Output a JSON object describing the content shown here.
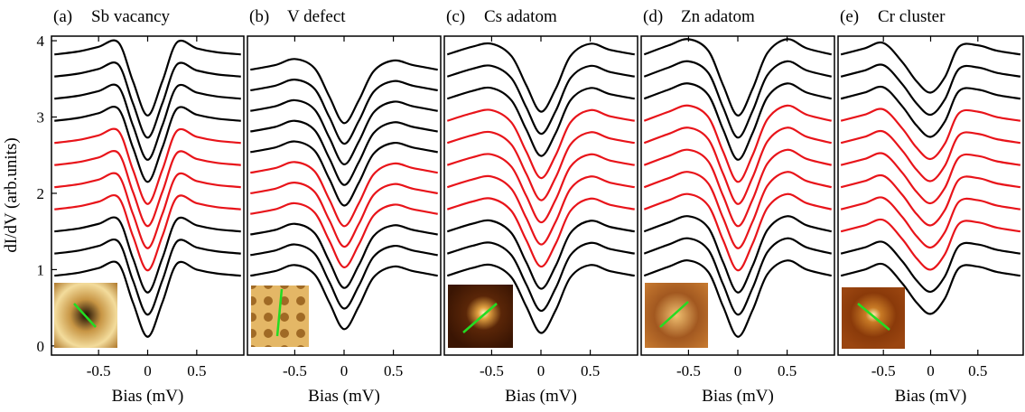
{
  "chart_data": [
    {
      "type": "line",
      "panel_label": "(a)",
      "title": "Sb vacancy",
      "x_label": "Bias (mV)",
      "y_label": "dI/dV (arb.units)",
      "xlim": [
        -0.98,
        0.98
      ],
      "xticks": [
        -0.5,
        0,
        0.5
      ],
      "ylim": [
        -0.12,
        4.06
      ],
      "yticks": [
        0,
        1,
        2,
        3,
        4
      ],
      "x": [
        -0.95,
        -0.7,
        -0.5,
        -0.3,
        -0.15,
        0,
        0.15,
        0.3,
        0.5,
        0.7,
        0.95
      ],
      "series": [
        {
          "color": "#000000",
          "values": [
            3.82,
            3.86,
            3.92,
            3.98,
            3.47,
            3.02,
            3.47,
            3.98,
            3.9,
            3.85,
            3.82
          ]
        },
        {
          "color": "#000000",
          "values": [
            3.53,
            3.57,
            3.63,
            3.69,
            3.18,
            2.73,
            3.18,
            3.69,
            3.61,
            3.56,
            3.53
          ]
        },
        {
          "color": "#000000",
          "values": [
            3.24,
            3.28,
            3.34,
            3.4,
            2.89,
            2.44,
            2.89,
            3.4,
            3.32,
            3.27,
            3.24
          ]
        },
        {
          "color": "#000000",
          "values": [
            2.95,
            2.99,
            3.05,
            3.11,
            2.6,
            2.15,
            2.6,
            3.11,
            3.03,
            2.98,
            2.95
          ]
        },
        {
          "color": "#e8141a",
          "values": [
            2.66,
            2.7,
            2.76,
            2.82,
            2.31,
            1.86,
            2.31,
            2.82,
            2.74,
            2.69,
            2.66
          ]
        },
        {
          "color": "#e8141a",
          "values": [
            2.37,
            2.41,
            2.47,
            2.53,
            2.02,
            1.57,
            2.02,
            2.53,
            2.45,
            2.4,
            2.37
          ]
        },
        {
          "color": "#e8141a",
          "values": [
            2.08,
            2.12,
            2.18,
            2.24,
            1.73,
            1.28,
            1.73,
            2.24,
            2.16,
            2.11,
            2.08
          ]
        },
        {
          "color": "#e8141a",
          "values": [
            1.79,
            1.83,
            1.89,
            1.95,
            1.44,
            0.99,
            1.44,
            1.95,
            1.87,
            1.82,
            1.79
          ]
        },
        {
          "color": "#000000",
          "values": [
            1.5,
            1.54,
            1.6,
            1.66,
            1.15,
            0.7,
            1.15,
            1.66,
            1.58,
            1.53,
            1.5
          ]
        },
        {
          "color": "#000000",
          "values": [
            1.21,
            1.25,
            1.31,
            1.37,
            0.86,
            0.41,
            0.86,
            1.37,
            1.29,
            1.24,
            1.21
          ]
        },
        {
          "color": "#000000",
          "values": [
            0.92,
            0.96,
            1.02,
            1.08,
            0.57,
            0.12,
            0.57,
            1.08,
            1.0,
            0.95,
            0.92
          ]
        }
      ]
    },
    {
      "type": "line",
      "panel_label": "(b)",
      "title": "V defect",
      "x_label": "Bias (mV)",
      "xlim": [
        -0.98,
        0.98
      ],
      "xticks": [
        -0.5,
        0,
        0.5
      ],
      "ylim": [
        -0.12,
        4.06
      ],
      "x": [
        -0.95,
        -0.7,
        -0.5,
        -0.3,
        -0.15,
        0,
        0.15,
        0.3,
        0.5,
        0.7,
        0.95
      ],
      "series": [
        {
          "color": "#000000",
          "values": [
            3.62,
            3.68,
            3.76,
            3.64,
            3.27,
            2.92,
            3.22,
            3.6,
            3.74,
            3.68,
            3.62
          ]
        },
        {
          "color": "#000000",
          "values": [
            3.35,
            3.41,
            3.49,
            3.37,
            3.0,
            2.65,
            2.95,
            3.33,
            3.47,
            3.41,
            3.35
          ]
        },
        {
          "color": "#000000",
          "values": [
            3.08,
            3.14,
            3.22,
            3.1,
            2.73,
            2.38,
            2.68,
            3.06,
            3.2,
            3.14,
            3.08
          ]
        },
        {
          "color": "#000000",
          "values": [
            2.81,
            2.87,
            2.95,
            2.83,
            2.46,
            2.11,
            2.41,
            2.79,
            2.93,
            2.87,
            2.81
          ]
        },
        {
          "color": "#000000",
          "values": [
            2.54,
            2.6,
            2.68,
            2.56,
            2.19,
            1.84,
            2.14,
            2.52,
            2.66,
            2.6,
            2.54
          ]
        },
        {
          "color": "#e8141a",
          "values": [
            2.27,
            2.33,
            2.41,
            2.29,
            1.92,
            1.57,
            1.87,
            2.25,
            2.39,
            2.33,
            2.27
          ]
        },
        {
          "color": "#e8141a",
          "values": [
            2,
            2.06,
            2.14,
            2.02,
            1.65,
            1.3,
            1.6,
            1.98,
            2.12,
            2.06,
            2
          ]
        },
        {
          "color": "#e8141a",
          "values": [
            1.73,
            1.79,
            1.87,
            1.75,
            1.38,
            1.03,
            1.33,
            1.71,
            1.85,
            1.79,
            1.73
          ]
        },
        {
          "color": "#000000",
          "values": [
            1.46,
            1.52,
            1.6,
            1.48,
            1.11,
            0.76,
            1.06,
            1.44,
            1.58,
            1.52,
            1.46
          ]
        },
        {
          "color": "#000000",
          "values": [
            1.19,
            1.25,
            1.33,
            1.21,
            0.84,
            0.49,
            0.79,
            1.17,
            1.31,
            1.25,
            1.19
          ]
        },
        {
          "color": "#000000",
          "values": [
            0.92,
            0.98,
            1.06,
            0.94,
            0.57,
            0.22,
            0.52,
            0.9,
            1.04,
            0.98,
            0.92
          ]
        }
      ]
    },
    {
      "type": "line",
      "panel_label": "(c)",
      "title": "Cs adatom",
      "x_label": "Bias (mV)",
      "xlim": [
        -0.98,
        0.98
      ],
      "xticks": [
        -0.5,
        0,
        0.5
      ],
      "ylim": [
        -0.12,
        4.06
      ],
      "x": [
        -0.95,
        -0.7,
        -0.5,
        -0.3,
        -0.15,
        0,
        0.15,
        0.3,
        0.5,
        0.7,
        0.95
      ],
      "series": [
        {
          "color": "#000000",
          "values": [
            3.82,
            3.92,
            3.96,
            3.8,
            3.42,
            3.07,
            3.37,
            3.8,
            3.96,
            3.88,
            3.82
          ]
        },
        {
          "color": "#000000",
          "values": [
            3.53,
            3.63,
            3.67,
            3.51,
            3.13,
            2.78,
            3.08,
            3.51,
            3.67,
            3.59,
            3.53
          ]
        },
        {
          "color": "#000000",
          "values": [
            3.24,
            3.34,
            3.38,
            3.22,
            2.84,
            2.49,
            2.79,
            3.22,
            3.38,
            3.3,
            3.24
          ]
        },
        {
          "color": "#e8141a",
          "values": [
            2.95,
            3.05,
            3.09,
            2.93,
            2.55,
            2.2,
            2.5,
            2.93,
            3.09,
            3.01,
            2.95
          ]
        },
        {
          "color": "#e8141a",
          "values": [
            2.66,
            2.76,
            2.8,
            2.64,
            2.26,
            1.91,
            2.21,
            2.64,
            2.8,
            2.72,
            2.66
          ]
        },
        {
          "color": "#e8141a",
          "values": [
            2.37,
            2.47,
            2.51,
            2.35,
            1.97,
            1.62,
            1.92,
            2.35,
            2.51,
            2.43,
            2.37
          ]
        },
        {
          "color": "#e8141a",
          "values": [
            2.08,
            2.18,
            2.22,
            2.06,
            1.68,
            1.33,
            1.63,
            2.06,
            2.22,
            2.14,
            2.08
          ]
        },
        {
          "color": "#e8141a",
          "values": [
            1.79,
            1.89,
            1.93,
            1.77,
            1.39,
            1.04,
            1.34,
            1.77,
            1.93,
            1.85,
            1.79
          ]
        },
        {
          "color": "#000000",
          "values": [
            1.5,
            1.6,
            1.64,
            1.48,
            1.1,
            0.75,
            1.05,
            1.48,
            1.64,
            1.56,
            1.5
          ]
        },
        {
          "color": "#000000",
          "values": [
            1.21,
            1.31,
            1.35,
            1.19,
            0.81,
            0.46,
            0.76,
            1.19,
            1.35,
            1.27,
            1.21
          ]
        },
        {
          "color": "#000000",
          "values": [
            0.92,
            1.02,
            1.06,
            0.9,
            0.52,
            0.17,
            0.47,
            0.9,
            1.06,
            0.98,
            0.92
          ]
        }
      ]
    },
    {
      "type": "line",
      "panel_label": "(d)",
      "title": "Zn adatom",
      "x_label": "Bias (mV)",
      "xlim": [
        -0.98,
        0.98
      ],
      "xticks": [
        -0.5,
        0,
        0.5
      ],
      "ylim": [
        -0.12,
        4.06
      ],
      "x": [
        -0.95,
        -0.7,
        -0.5,
        -0.3,
        -0.15,
        0,
        0.15,
        0.3,
        0.5,
        0.7,
        0.95
      ],
      "series": [
        {
          "color": "#000000",
          "values": [
            3.82,
            3.94,
            4.02,
            3.87,
            3.42,
            3.02,
            3.37,
            3.84,
            4.02,
            3.9,
            3.82
          ]
        },
        {
          "color": "#000000",
          "values": [
            3.53,
            3.65,
            3.73,
            3.58,
            3.13,
            2.73,
            3.08,
            3.55,
            3.73,
            3.61,
            3.53
          ]
        },
        {
          "color": "#000000",
          "values": [
            3.24,
            3.36,
            3.44,
            3.29,
            2.84,
            2.44,
            2.79,
            3.26,
            3.44,
            3.32,
            3.24
          ]
        },
        {
          "color": "#e8141a",
          "values": [
            2.95,
            3.07,
            3.15,
            3.0,
            2.55,
            2.15,
            2.5,
            2.97,
            3.15,
            3.03,
            2.95
          ]
        },
        {
          "color": "#e8141a",
          "values": [
            2.66,
            2.78,
            2.86,
            2.71,
            2.26,
            1.86,
            2.21,
            2.68,
            2.86,
            2.74,
            2.66
          ]
        },
        {
          "color": "#e8141a",
          "values": [
            2.37,
            2.49,
            2.57,
            2.42,
            1.97,
            1.57,
            1.92,
            2.39,
            2.57,
            2.45,
            2.37
          ]
        },
        {
          "color": "#e8141a",
          "values": [
            2.08,
            2.2,
            2.28,
            2.13,
            1.68,
            1.28,
            1.63,
            2.1,
            2.28,
            2.16,
            2.08
          ]
        },
        {
          "color": "#e8141a",
          "values": [
            1.79,
            1.91,
            1.99,
            1.84,
            1.39,
            0.99,
            1.34,
            1.81,
            1.99,
            1.87,
            1.79
          ]
        },
        {
          "color": "#000000",
          "values": [
            1.5,
            1.62,
            1.7,
            1.55,
            1.1,
            0.7,
            1.05,
            1.52,
            1.7,
            1.58,
            1.5
          ]
        },
        {
          "color": "#000000",
          "values": [
            1.21,
            1.33,
            1.41,
            1.26,
            0.81,
            0.41,
            0.76,
            1.23,
            1.41,
            1.29,
            1.21
          ]
        },
        {
          "color": "#000000",
          "values": [
            0.92,
            1.04,
            1.12,
            0.97,
            0.52,
            0.12,
            0.47,
            0.94,
            1.12,
            1.0,
            0.92
          ]
        }
      ]
    },
    {
      "type": "line",
      "panel_label": "(e)",
      "title": "Cr cluster",
      "x_label": "Bias (mV)",
      "xlim": [
        -0.98,
        0.98
      ],
      "xticks": [
        -0.5,
        0,
        0.5
      ],
      "ylim": [
        -0.12,
        4.06
      ],
      "x": [
        -0.95,
        -0.7,
        -0.5,
        -0.3,
        -0.15,
        0,
        0.15,
        0.3,
        0.5,
        0.7,
        0.95
      ],
      "series": [
        {
          "color": "#000000",
          "values": [
            3.82,
            3.9,
            3.97,
            3.72,
            3.47,
            3.32,
            3.52,
            3.92,
            3.94,
            3.87,
            3.82
          ]
        },
        {
          "color": "#000000",
          "values": [
            3.53,
            3.61,
            3.68,
            3.43,
            3.18,
            3.03,
            3.23,
            3.63,
            3.65,
            3.58,
            3.53
          ]
        },
        {
          "color": "#000000",
          "values": [
            3.24,
            3.32,
            3.39,
            3.14,
            2.89,
            2.74,
            2.94,
            3.34,
            3.36,
            3.29,
            3.24
          ]
        },
        {
          "color": "#e8141a",
          "values": [
            2.95,
            3.03,
            3.1,
            2.85,
            2.6,
            2.45,
            2.65,
            3.05,
            3.07,
            3.0,
            2.95
          ]
        },
        {
          "color": "#e8141a",
          "values": [
            2.66,
            2.74,
            2.81,
            2.56,
            2.31,
            2.16,
            2.36,
            2.76,
            2.78,
            2.71,
            2.66
          ]
        },
        {
          "color": "#e8141a",
          "values": [
            2.37,
            2.45,
            2.52,
            2.27,
            2.02,
            1.87,
            2.07,
            2.47,
            2.49,
            2.42,
            2.37
          ]
        },
        {
          "color": "#e8141a",
          "values": [
            2.08,
            2.16,
            2.23,
            1.98,
            1.73,
            1.58,
            1.78,
            2.18,
            2.2,
            2.13,
            2.08
          ]
        },
        {
          "color": "#e8141a",
          "values": [
            1.79,
            1.87,
            1.94,
            1.69,
            1.44,
            1.29,
            1.49,
            1.89,
            1.91,
            1.84,
            1.79
          ]
        },
        {
          "color": "#e8141a",
          "values": [
            1.5,
            1.58,
            1.65,
            1.4,
            1.15,
            1.0,
            1.2,
            1.6,
            1.62,
            1.55,
            1.5
          ]
        },
        {
          "color": "#000000",
          "values": [
            1.21,
            1.29,
            1.36,
            1.11,
            0.86,
            0.71,
            0.91,
            1.31,
            1.33,
            1.26,
            1.21
          ]
        },
        {
          "color": "#000000",
          "values": [
            0.92,
            1.0,
            1.07,
            0.82,
            0.57,
            0.42,
            0.62,
            1.02,
            1.04,
            0.97,
            0.92
          ]
        }
      ]
    }
  ]
}
